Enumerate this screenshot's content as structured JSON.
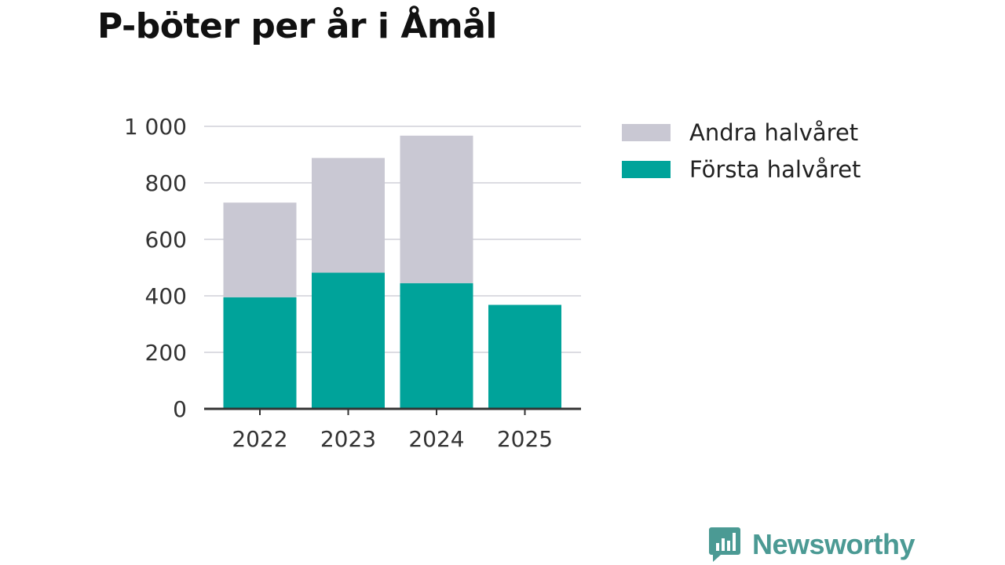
{
  "colors": {
    "first_half": "#00a39a",
    "second_half": "#c9c8d3",
    "grid": "#dcdce2",
    "axis": "#333333",
    "brand": "#4b9a94"
  },
  "chart_data": {
    "type": "bar",
    "stacked": true,
    "title": "P-böter per år i Åmål",
    "categories": [
      "2022",
      "2023",
      "2024",
      "2025"
    ],
    "series": [
      {
        "name": "Första halvåret",
        "values": [
          395,
          482,
          445,
          368
        ]
      },
      {
        "name": "Andra halvåret",
        "values": [
          335,
          406,
          522,
          null
        ]
      }
    ],
    "yticks": [
      0,
      200,
      400,
      600,
      800,
      1000
    ],
    "ytick_labels": [
      "0",
      "200",
      "400",
      "600",
      "800",
      "1 000"
    ],
    "ylim": [
      0,
      1000
    ],
    "xlabel": "",
    "ylabel": "",
    "grid": true,
    "legend_position": "top-right",
    "legend": [
      "Andra halvåret",
      "Första halvåret"
    ]
  },
  "brand": {
    "name": "Newsworthy",
    "icon": "bar-chart-speech-bubble-icon"
  }
}
